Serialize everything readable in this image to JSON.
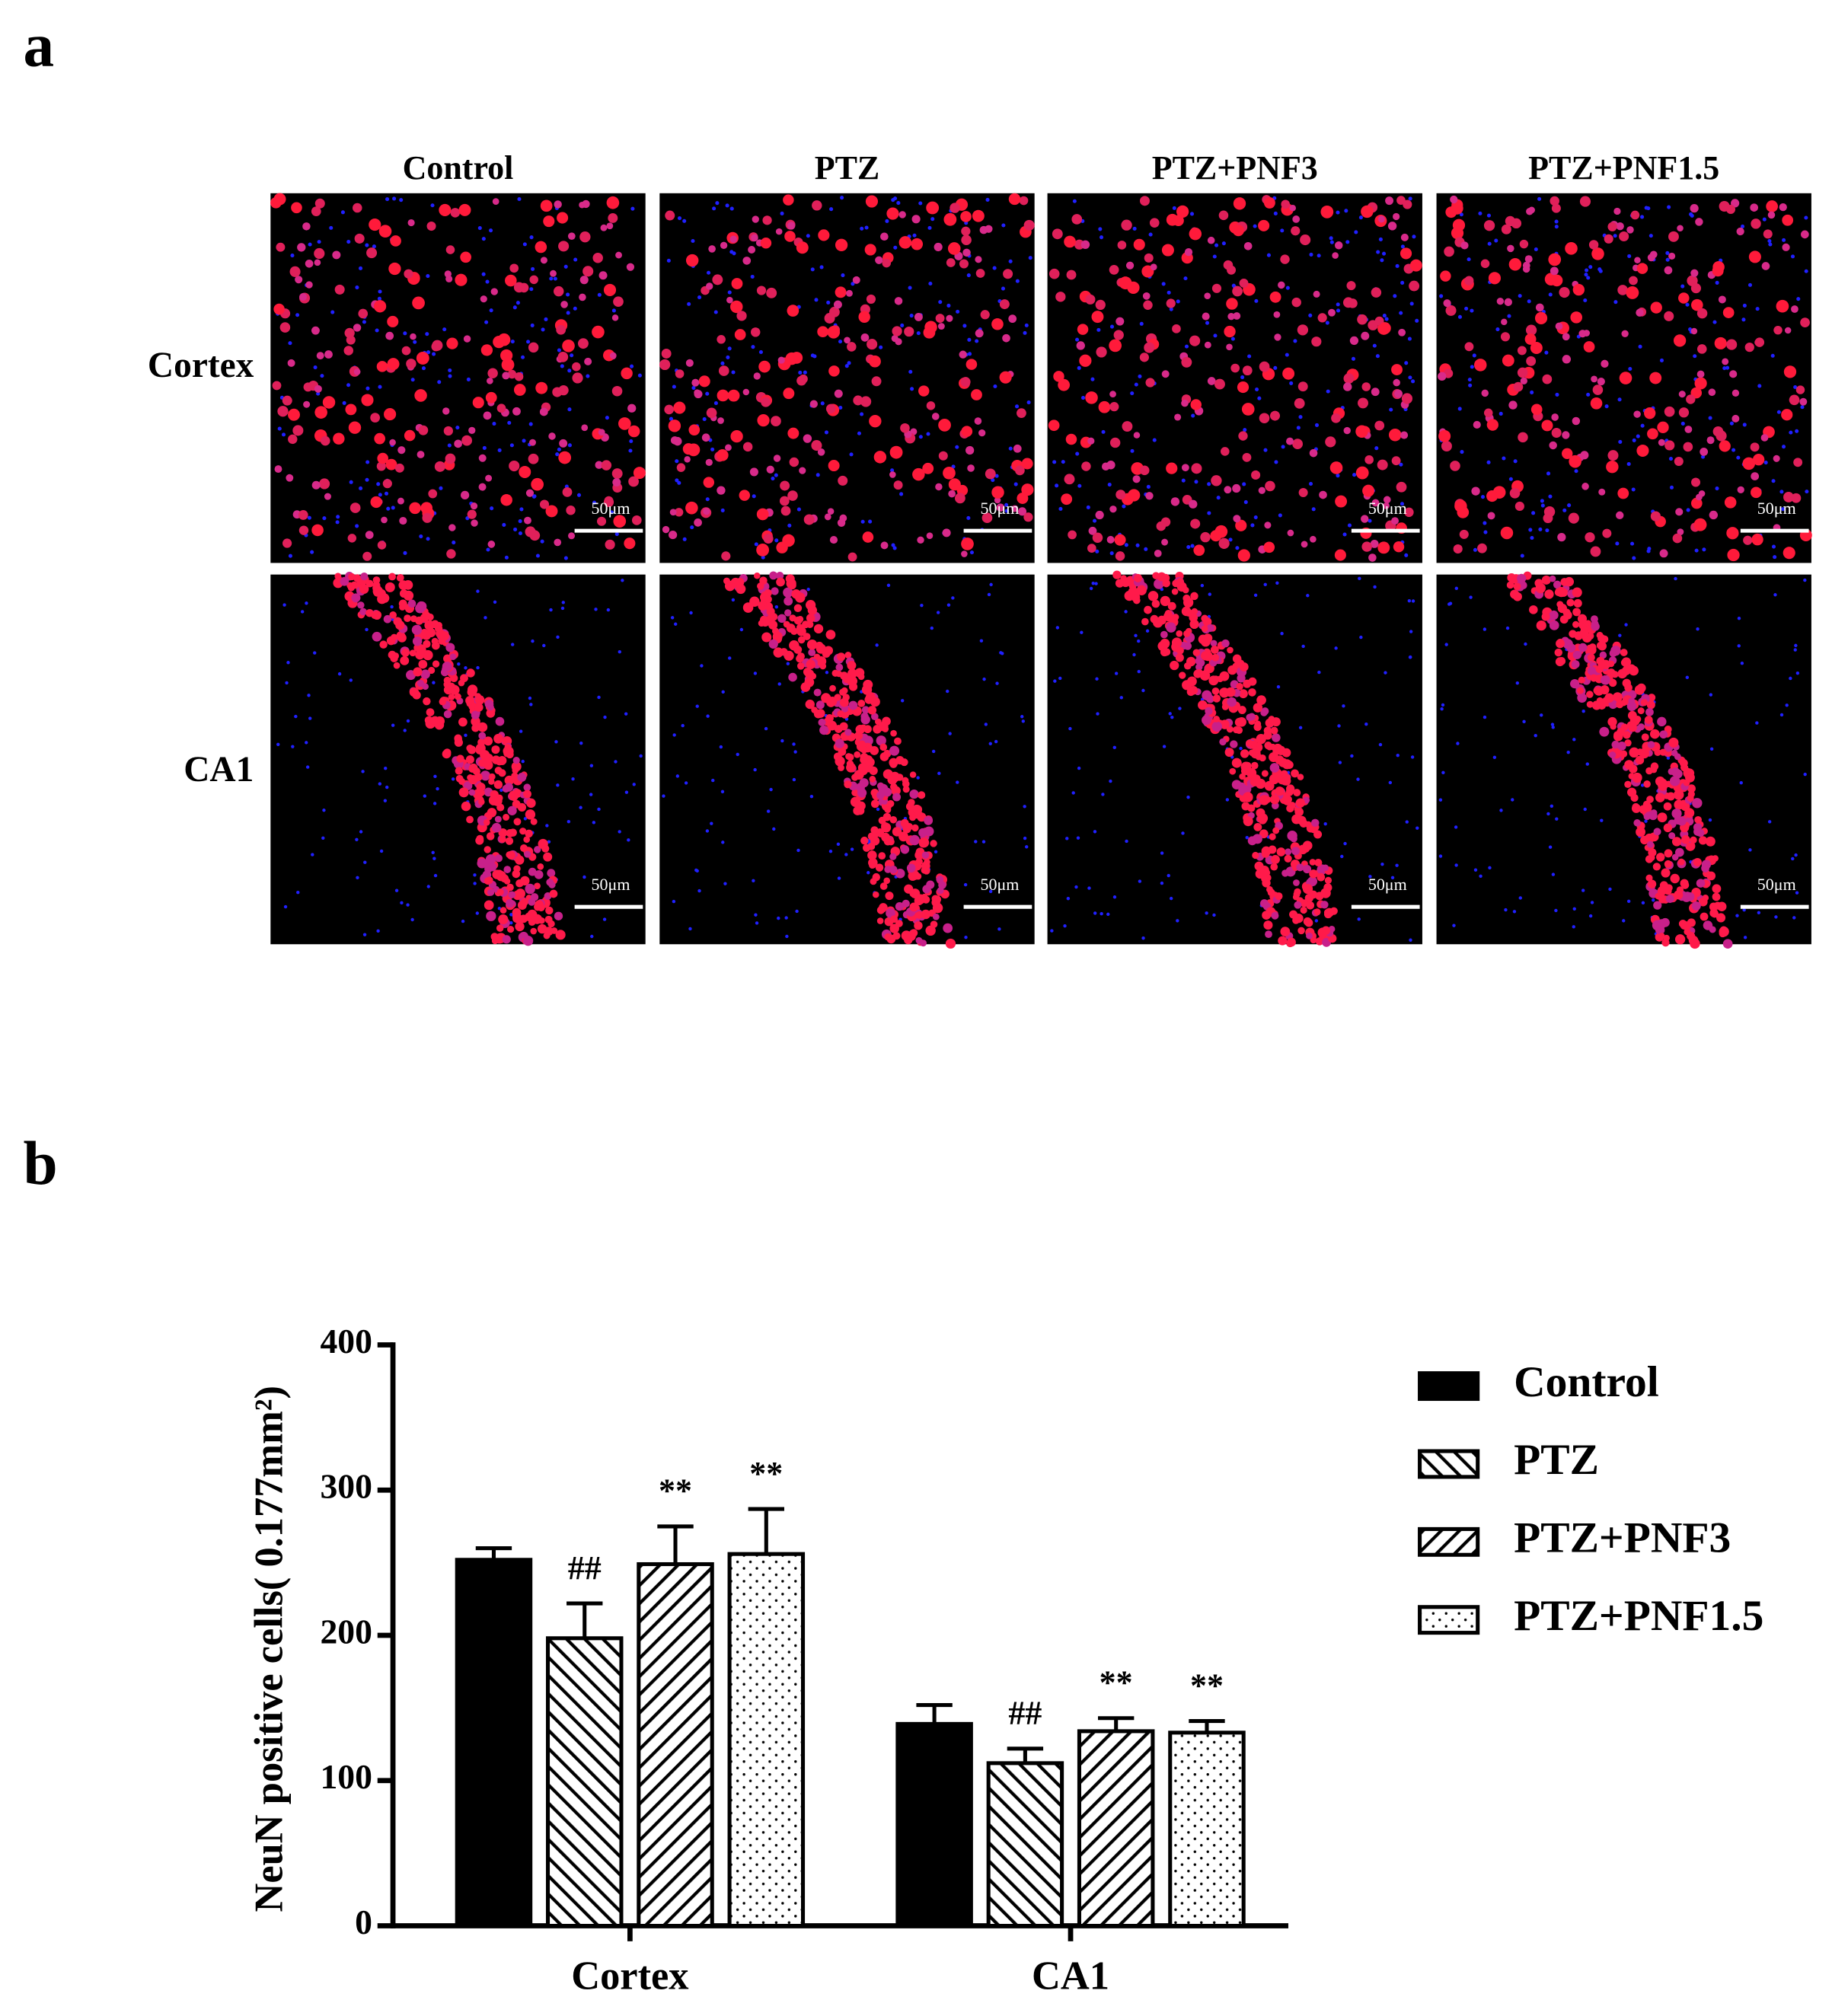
{
  "panel_a": {
    "label": "a",
    "columns": [
      "Control",
      "PTZ",
      "PTZ+PNF3",
      "PTZ+PNF1.5"
    ],
    "rows": [
      "Cortex",
      "CA1"
    ],
    "scale_bar": "50μm"
  },
  "chart_data": {
    "type": "bar",
    "label": "b",
    "y_label": "NeuN positive cells( 0.177mm²)",
    "categories": [
      "Cortex",
      "CA1"
    ],
    "series": [
      {
        "name": "Control",
        "color": "#000000",
        "pattern": "solid",
        "values": [
          252,
          139
        ],
        "errors": [
          8,
          13
        ],
        "annotations": [
          null,
          null
        ]
      },
      {
        "name": "PTZ",
        "color": "#000000",
        "pattern": "backslash",
        "values": [
          198,
          112
        ],
        "errors": [
          24,
          10
        ],
        "annotations": [
          "##",
          "##"
        ]
      },
      {
        "name": "PTZ+PNF3",
        "color": "#000000",
        "pattern": "slash",
        "values": [
          249,
          134
        ],
        "errors": [
          26,
          9
        ],
        "annotations": [
          "**",
          "**"
        ]
      },
      {
        "name": "PTZ+PNF1.5",
        "color": "#000000",
        "pattern": "dots",
        "values": [
          256,
          133
        ],
        "errors": [
          31,
          8
        ],
        "annotations": [
          "**",
          "**"
        ]
      }
    ],
    "ylim": [
      0,
      400
    ],
    "yticks": [
      0,
      100,
      200,
      300,
      400
    ],
    "legend": "right"
  }
}
